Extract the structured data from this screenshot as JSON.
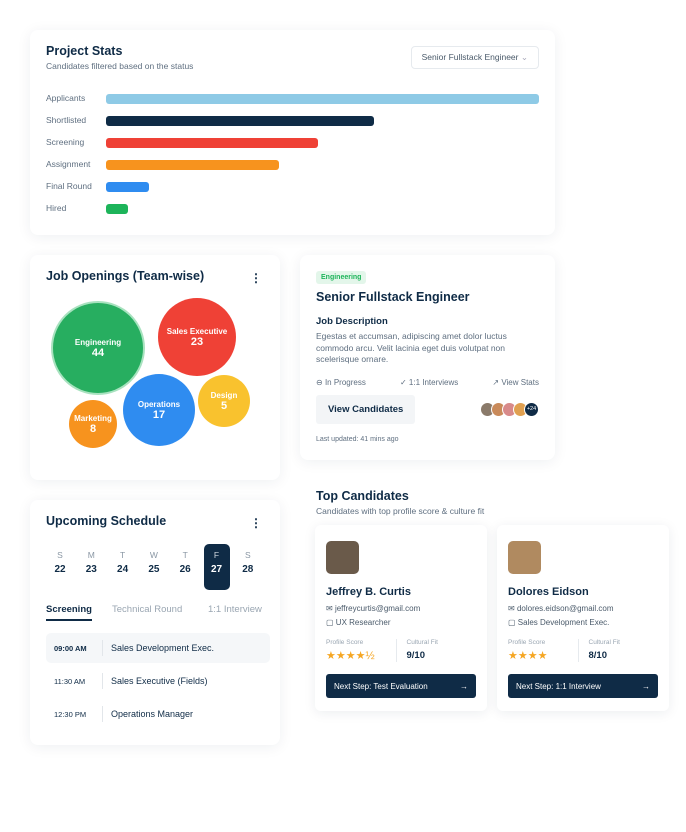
{
  "project_stats": {
    "title": "Project Stats",
    "subtitle": "Candidates filtered based on the status",
    "filter": "Senior Fullstack Engineer",
    "bars": [
      {
        "label": "Applicants",
        "value": 100,
        "color": "#8ecae6"
      },
      {
        "label": "Shortlisted",
        "value": 62,
        "color": "#0f2b46"
      },
      {
        "label": "Screening",
        "value": 49,
        "color": "#ef4136"
      },
      {
        "label": "Assignment",
        "value": 40,
        "color": "#f7931e"
      },
      {
        "label": "Final Round",
        "value": 10,
        "color": "#2f8cf0"
      },
      {
        "label": "Hired",
        "value": 5,
        "color": "#1db45a"
      }
    ]
  },
  "job_openings": {
    "title": "Job Openings (Team-wise)",
    "teams": [
      {
        "name": "Engineering",
        "count": "44",
        "color": "#27ae60"
      },
      {
        "name": "Sales Executive",
        "count": "23",
        "color": "#ef4136"
      },
      {
        "name": "Operations",
        "count": "17",
        "color": "#2f8cf0"
      },
      {
        "name": "Design",
        "count": "5",
        "color": "#f9c22e"
      },
      {
        "name": "Marketing",
        "count": "8",
        "color": "#f7931e"
      }
    ]
  },
  "job": {
    "tag": "Engineering",
    "title": "Senior Fullstack Engineer",
    "desc_title": "Job Description",
    "desc": "Egestas et accumsan, adipiscing amet dolor luctus commodo arcu. Velit lacinia eget duis volutpat non scelerisque ornare.",
    "status": "In Progress",
    "interviews": "1:1 Interviews",
    "stats": "View Stats",
    "button": "View Candidates",
    "more": "+24",
    "updated": "Last updated: 41 mins ago"
  },
  "schedule": {
    "title": "Upcoming Schedule",
    "days": [
      {
        "w": "S",
        "d": "22"
      },
      {
        "w": "M",
        "d": "23"
      },
      {
        "w": "T",
        "d": "24"
      },
      {
        "w": "W",
        "d": "25"
      },
      {
        "w": "T",
        "d": "26"
      },
      {
        "w": "F",
        "d": "27",
        "selected": true
      },
      {
        "w": "S",
        "d": "28"
      }
    ],
    "tabs": [
      "Screening",
      "Technical Round",
      "1:1 Interview"
    ],
    "items": [
      {
        "time": "09:00 AM",
        "title": "Sales Development Exec."
      },
      {
        "time": "11:30 AM",
        "title": "Sales Executive (Fields)"
      },
      {
        "time": "12:30 PM",
        "title": "Operations Manager"
      }
    ]
  },
  "top": {
    "title": "Top Candidates",
    "subtitle": "Candidates with top profile score & culture fit",
    "score_label": "Profile Score",
    "fit_label": "Cultural Fit",
    "candidates": [
      {
        "name": "Jeffrey B. Curtis",
        "email": "jeffreycurtis@gmail.com",
        "role": "UX Researcher",
        "stars": "★★★★½",
        "rating": 4.5,
        "fit": "9/10",
        "next": "Next Step: Test Evaluation"
      },
      {
        "name": "Dolores Eidson",
        "email": "dolores.eidson@gmail.com",
        "role": "Sales Development Exec.",
        "stars": "★★★★",
        "rating": 4,
        "fit": "8/10",
        "next": "Next Step: 1:1 Interview"
      }
    ]
  }
}
